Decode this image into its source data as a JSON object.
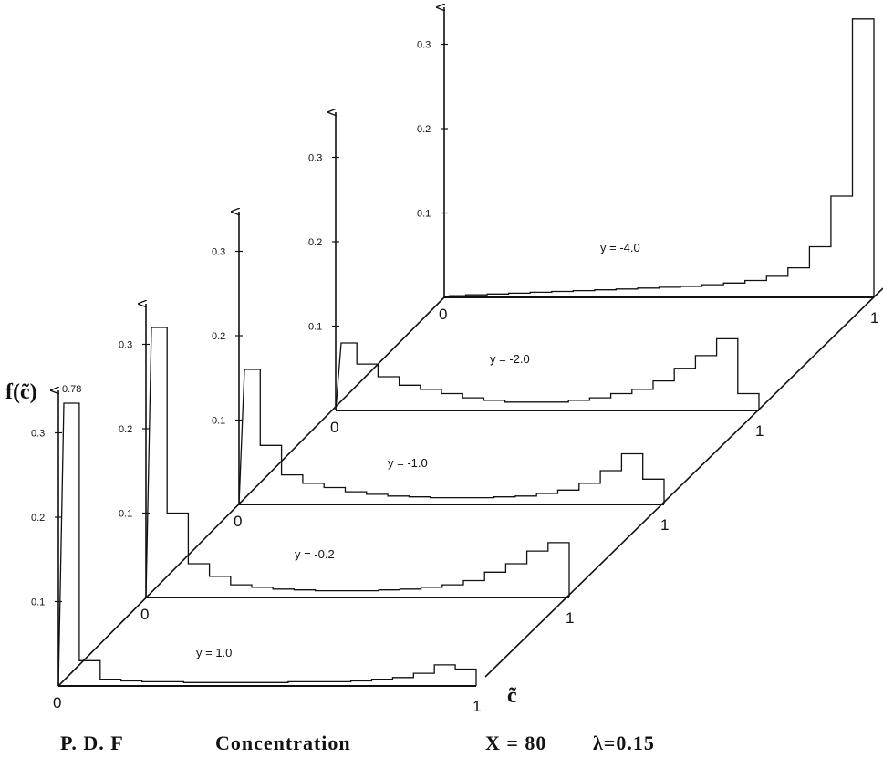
{
  "figure": {
    "y_axis_title": "f(c̃)",
    "x_axis_title": "c̃",
    "footer": {
      "pdf": "P. D. F",
      "quantity": "Concentration",
      "x_param": "X = 80",
      "lambda_param": "λ=0.15"
    }
  },
  "chart_data": {
    "type": "bar",
    "style": "3D waterfall of step histograms",
    "xlabel": "c̃",
    "ylabel": "f(c̃)",
    "xlim": [
      0,
      1
    ],
    "x_ticks": [
      "0",
      "1"
    ],
    "panels": [
      {
        "name": "y = 1.0",
        "label": "y = 1.0",
        "y_ticks": [
          "0.1",
          "0.2",
          "0.3"
        ],
        "peak_label": "0.78",
        "bins": 20,
        "values": [
          0.78,
          0.03,
          0.008,
          0.006,
          0.005,
          0.005,
          0.004,
          0.004,
          0.004,
          0.004,
          0.004,
          0.005,
          0.005,
          0.005,
          0.006,
          0.008,
          0.01,
          0.015,
          0.025,
          0.02
        ]
      },
      {
        "name": "y = -0.2",
        "label": "y = -0.2",
        "y_ticks": [
          "0.1",
          "0.2",
          "0.3"
        ],
        "bins": 20,
        "values": [
          0.32,
          0.1,
          0.04,
          0.025,
          0.015,
          0.012,
          0.01,
          0.009,
          0.008,
          0.008,
          0.008,
          0.009,
          0.01,
          0.012,
          0.015,
          0.02,
          0.03,
          0.04,
          0.055,
          0.065
        ]
      },
      {
        "name": "y = -1.0",
        "label": "y = -1.0",
        "y_ticks": [
          "0.1",
          "0.2",
          "0.3"
        ],
        "bins": 20,
        "values": [
          0.16,
          0.07,
          0.035,
          0.025,
          0.02,
          0.015,
          0.012,
          0.01,
          0.009,
          0.008,
          0.008,
          0.008,
          0.009,
          0.01,
          0.013,
          0.017,
          0.025,
          0.04,
          0.06,
          0.03
        ]
      },
      {
        "name": "y = -2.0",
        "label": "y = -2.0",
        "y_ticks": [
          "0.1",
          "0.2",
          "0.3"
        ],
        "bins": 20,
        "values": [
          0.08,
          0.055,
          0.04,
          0.03,
          0.025,
          0.02,
          0.015,
          0.012,
          0.01,
          0.01,
          0.01,
          0.012,
          0.015,
          0.02,
          0.025,
          0.035,
          0.05,
          0.065,
          0.085,
          0.02
        ]
      },
      {
        "name": "y = -4.0",
        "label": "y = -4.0",
        "y_ticks": [
          "0.1",
          "0.2",
          "0.3"
        ],
        "bins": 20,
        "values": [
          0.002,
          0.003,
          0.004,
          0.005,
          0.006,
          0.007,
          0.008,
          0.009,
          0.01,
          0.011,
          0.012,
          0.013,
          0.015,
          0.017,
          0.02,
          0.025,
          0.035,
          0.06,
          0.12,
          0.33
        ]
      }
    ]
  }
}
